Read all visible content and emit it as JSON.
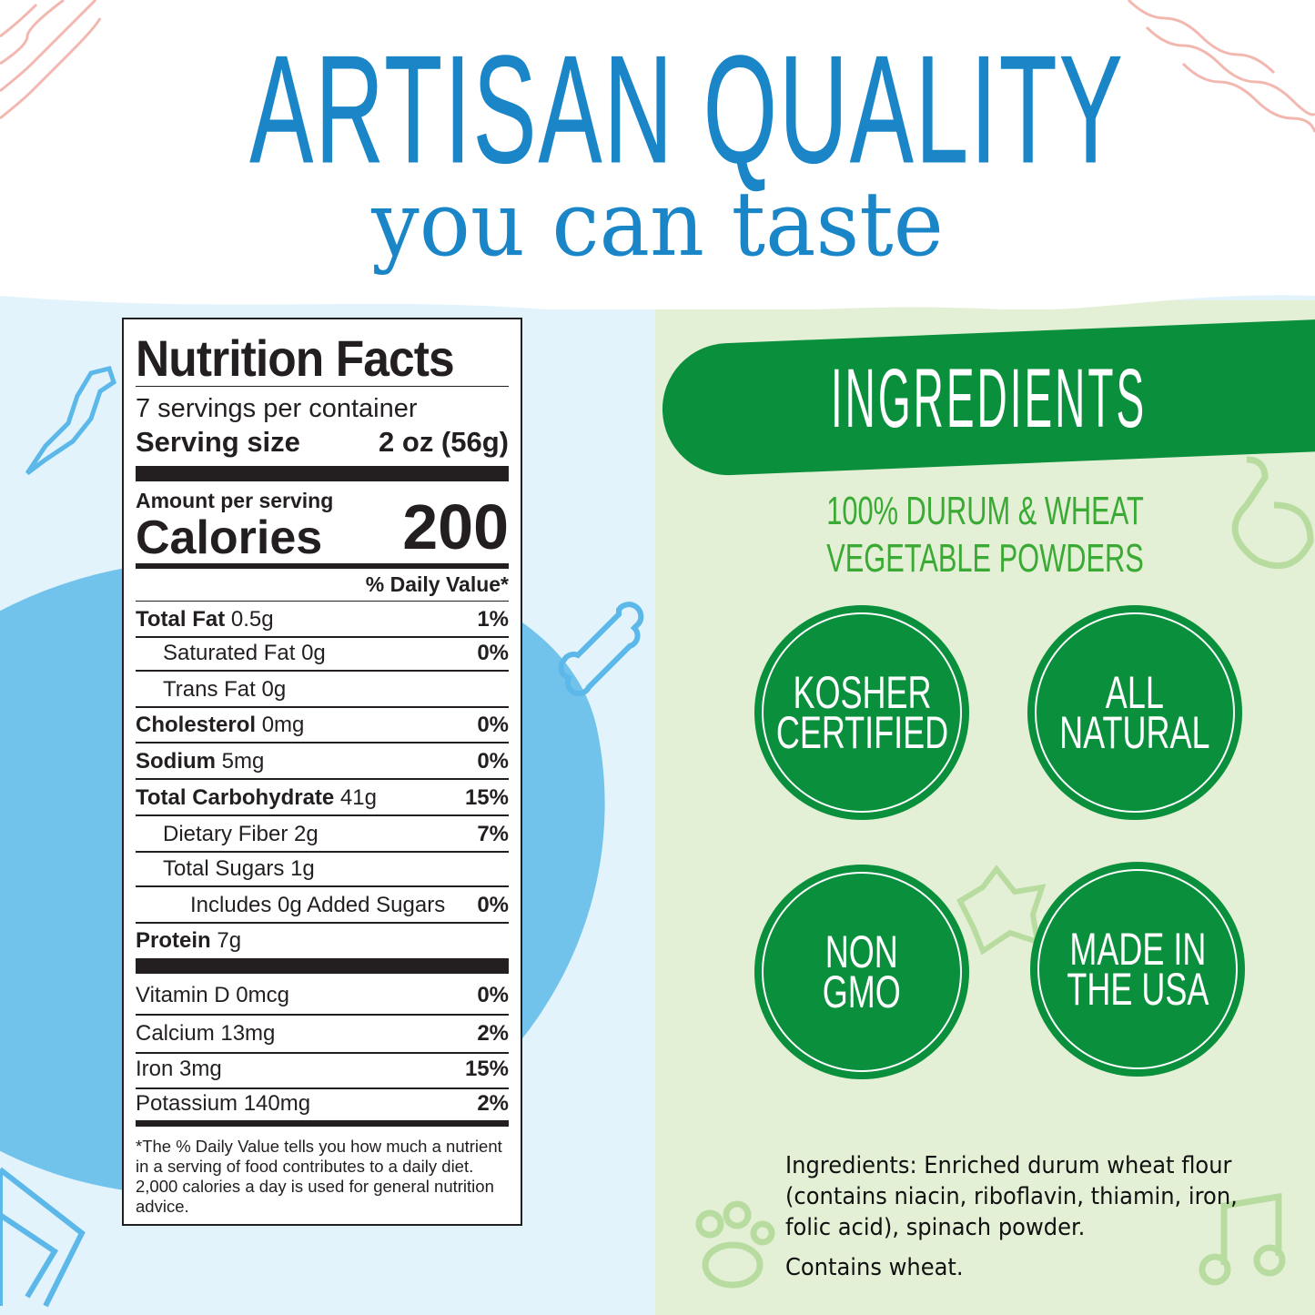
{
  "headline": {
    "line1": "ARTISAN QUALITY",
    "line2": "you can taste"
  },
  "nutrition": {
    "title": "Nutrition Facts",
    "servings": "7 servings per container",
    "serving_size_label": "Serving size",
    "serving_size_value": "2 oz (56g)",
    "amount_per_serving": "Amount per serving",
    "calories_label": "Calories",
    "calories_value": "200",
    "dv_header": "% Daily Value*",
    "rows": [
      {
        "bold": "Total Fat",
        "text": " 0.5g",
        "dv": "1%",
        "indent": 0
      },
      {
        "bold": "",
        "text": "Saturated Fat 0g",
        "dv": "0%",
        "indent": 1
      },
      {
        "bold": "",
        "text": "Trans Fat 0g",
        "dv": "",
        "indent": 1
      },
      {
        "bold": "Cholesterol",
        "text": " 0mg",
        "dv": "0%",
        "indent": 0
      },
      {
        "bold": "Sodium",
        "text": " 5mg",
        "dv": "0%",
        "indent": 0
      },
      {
        "bold": "Total Carbohydrate",
        "text": " 41g",
        "dv": "15%",
        "indent": 0
      },
      {
        "bold": "",
        "text": "Dietary Fiber 2g",
        "dv": "7%",
        "indent": 1
      },
      {
        "bold": "",
        "text": "Total Sugars 1g",
        "dv": "",
        "indent": 1
      },
      {
        "bold": "",
        "text": "Includes 0g Added Sugars",
        "dv": "0%",
        "indent": 2
      },
      {
        "bold": "Protein",
        "text": " 7g",
        "dv": "",
        "indent": 0
      }
    ],
    "vitamins": [
      {
        "text": "Vitamin D 0mcg",
        "dv": "0%"
      },
      {
        "text": "Calcium 13mg",
        "dv": "2%"
      },
      {
        "text": "Iron 3mg",
        "dv": "15%"
      },
      {
        "text": "Potassium 140mg",
        "dv": "2%"
      }
    ],
    "footnote": "*The % Daily Value tells you how much a nutrient in a serving of food contributes to a daily diet. 2,000 calories a day is used for general nutrition advice."
  },
  "ingredients_panel": {
    "banner": "INGREDIENTS",
    "subtitle_line1": "100% DURUM & WHEAT",
    "subtitle_line2": "VEGETABLE POWDERS",
    "badges": [
      "KOSHER\nCERTIFIED",
      "ALL\nNATURAL",
      "NON\nGMO",
      "MADE IN\nTHE USA"
    ],
    "ingredients_text": "Ingredients: Enriched durum wheat flour (contains niacin, riboflavin, thiamin, iron, folic acid), spinach powder.",
    "allergen": "Contains wheat."
  },
  "colors": {
    "blue": "#1a86c8",
    "light_blue": "#e2f3fc",
    "blob_blue": "#72c3ec",
    "green": "#0a8f3c",
    "light_green": "#e3f0d5",
    "sub_green": "#3aaa35"
  }
}
